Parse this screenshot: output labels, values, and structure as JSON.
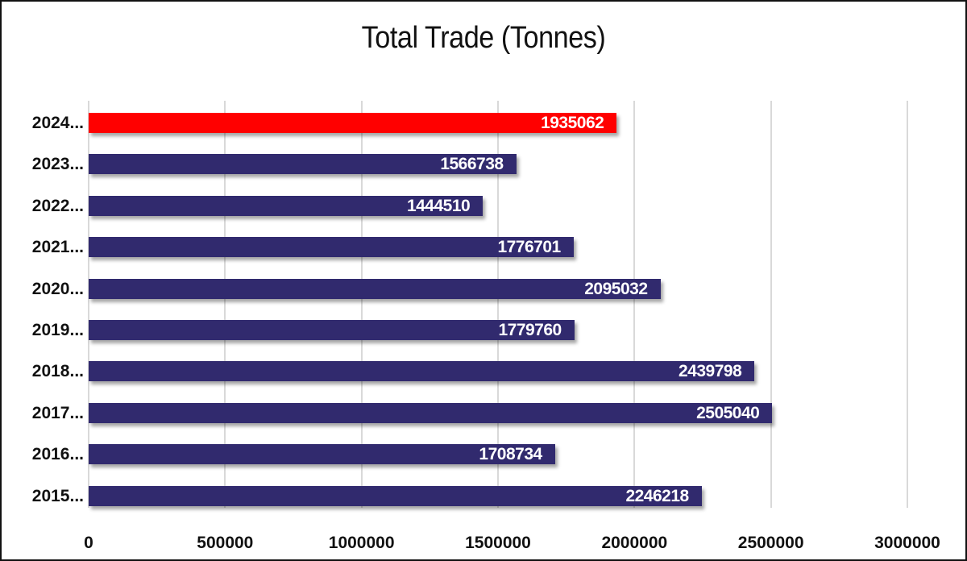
{
  "chart_data": {
    "type": "bar",
    "orientation": "horizontal",
    "title": "Total Trade (Tonnes)",
    "xlabel": "",
    "ylabel": "",
    "categories": [
      "2024...",
      "2023...",
      "2022...",
      "2021...",
      "2020...",
      "2019...",
      "2018...",
      "2017...",
      "2016...",
      "2015..."
    ],
    "values": [
      1935062,
      1566738,
      1444510,
      1776701,
      2095032,
      1779760,
      2439798,
      2505040,
      1708734,
      2246218
    ],
    "bar_colors": [
      "#FF0000",
      "#312A6E",
      "#312A6E",
      "#312A6E",
      "#312A6E",
      "#312A6E",
      "#312A6E",
      "#312A6E",
      "#312A6E",
      "#312A6E"
    ],
    "highlight_color": "#FF0000",
    "default_color": "#312A6E",
    "xlim": [
      0,
      3000000
    ],
    "x_ticks": [
      "0",
      "500000",
      "1000000",
      "1500000",
      "2000000",
      "2500000",
      "3000000"
    ],
    "grid": true,
    "legend": "none",
    "data_labels": true
  }
}
